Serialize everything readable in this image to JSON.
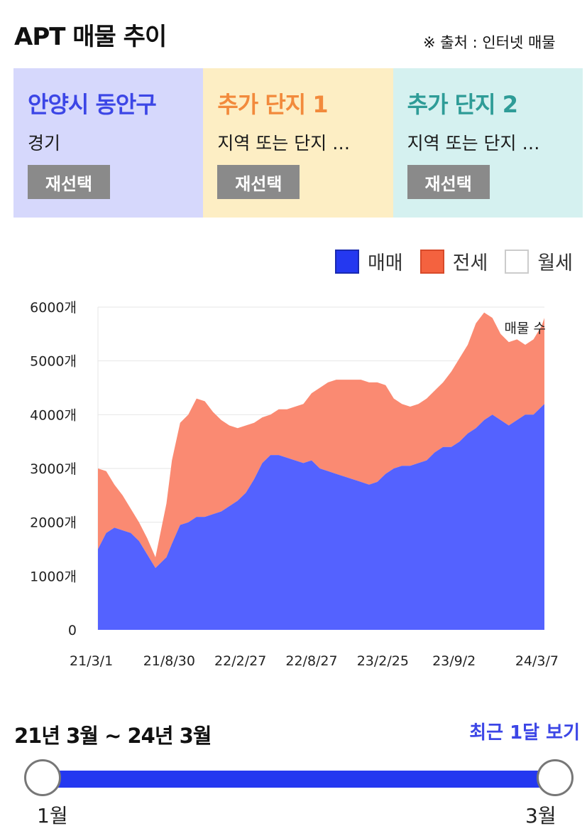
{
  "header": {
    "title": "APT 매물 추이",
    "source": "※ 출처 : 인터넷 매물"
  },
  "panels": [
    {
      "name": "안양시 동안구",
      "sub": "경기",
      "button": "재선택"
    },
    {
      "name": "추가 단지 1",
      "sub": "지역 또는 단지 …",
      "button": "재선택"
    },
    {
      "name": "추가 단지 2",
      "sub": "지역 또는 단지 …",
      "button": "재선택"
    }
  ],
  "legend": [
    {
      "label": "매매",
      "color": "#2438f0"
    },
    {
      "label": "전세",
      "color": "#f4623f"
    },
    {
      "label": "월세",
      "color": "#ffffff"
    }
  ],
  "chart_data": {
    "type": "area",
    "stacked": true,
    "annotation": "매물 수",
    "y_ticks": [
      "0",
      "1000개",
      "2000개",
      "3000개",
      "4000개",
      "5000개",
      "6000개"
    ],
    "x_ticks": [
      "21/3/1",
      "21/8/30",
      "22/2/27",
      "22/8/27",
      "23/2/25",
      "23/9/2",
      "24/3/7"
    ],
    "ylim": [
      0,
      6000
    ],
    "grid": true,
    "x_index": [
      0,
      3,
      6,
      9,
      12,
      15,
      18,
      21,
      25,
      27,
      30,
      33,
      36,
      39,
      42,
      45,
      48,
      51,
      54,
      57,
      60,
      63,
      66,
      69,
      72,
      75,
      78,
      81,
      84,
      87,
      90,
      93,
      96,
      99,
      102,
      105,
      108,
      111,
      114,
      117,
      120,
      123,
      126,
      129,
      132,
      135,
      138,
      141,
      144,
      147,
      150,
      153,
      156,
      159,
      162,
      163
    ],
    "x_label_index": [
      0,
      26,
      52,
      78,
      104,
      130,
      156
    ],
    "series": [
      {
        "name": "매매",
        "color": "#5462ff",
        "values": [
          1500,
          1800,
          1900,
          1850,
          1800,
          1650,
          1400,
          1150,
          1350,
          1600,
          1950,
          2000,
          2100,
          2100,
          2150,
          2200,
          2300,
          2400,
          2550,
          2800,
          3100,
          3250,
          3250,
          3200,
          3150,
          3100,
          3150,
          3000,
          2950,
          2900,
          2850,
          2800,
          2750,
          2700,
          2750,
          2900,
          3000,
          3050,
          3050,
          3100,
          3150,
          3300,
          3400,
          3400,
          3500,
          3650,
          3750,
          3900,
          4000,
          3900,
          3800,
          3900,
          4000,
          4000,
          4150,
          4200
        ]
      },
      {
        "name": "전세",
        "color": "#fa8a72",
        "values": [
          1500,
          1150,
          800,
          650,
          450,
          350,
          300,
          200,
          1000,
          1550,
          1900,
          2000,
          2200,
          2150,
          1900,
          1700,
          1500,
          1350,
          1250,
          1050,
          850,
          750,
          850,
          900,
          1000,
          1100,
          1250,
          1500,
          1650,
          1750,
          1800,
          1850,
          1900,
          1900,
          1850,
          1650,
          1300,
          1150,
          1100,
          1100,
          1150,
          1150,
          1200,
          1400,
          1550,
          1650,
          1950,
          2000,
          1800,
          1600,
          1550,
          1500,
          1300,
          1400,
          1500,
          1600
        ]
      }
    ]
  },
  "range_text": "21년 3월 ~ 24년 3월",
  "recent_link": "최근 1달 보기",
  "slider": {
    "min_label": "1월",
    "max_label": "3월"
  }
}
